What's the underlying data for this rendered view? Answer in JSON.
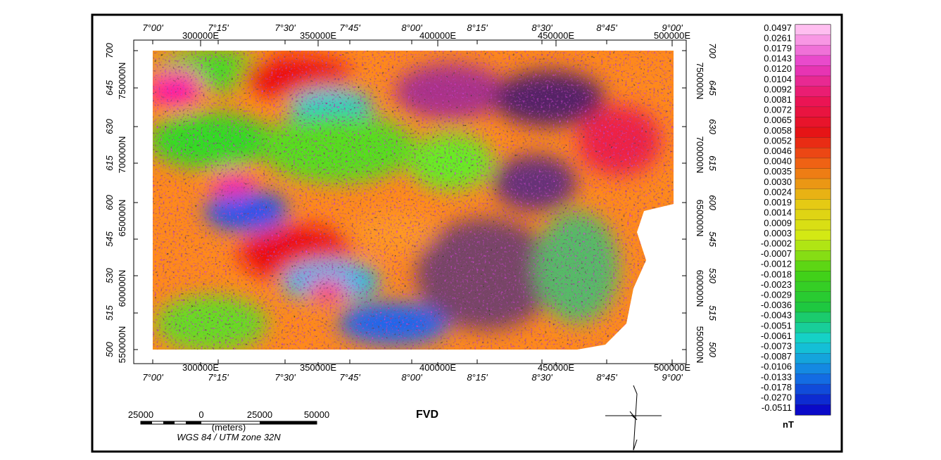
{
  "map": {
    "title": "FVD",
    "top_axis": {
      "degrees": [
        "7°00'",
        "7°15'",
        "7°30'",
        "7°45'",
        "8°00'",
        "8°15'",
        "8°30'",
        "8°45'",
        "9°00'"
      ],
      "utm": [
        "300000E",
        "350000E",
        "400000E",
        "450000E",
        "500000E"
      ]
    },
    "bottom_axis": {
      "degrees": [
        "7°00'",
        "7°15'",
        "7°30'",
        "7°45'",
        "8°00'",
        "8°15'",
        "8°30'",
        "8°45'",
        "9°00'"
      ],
      "utm": [
        "300000E",
        "350000E",
        "400000E",
        "450000E",
        "500000E"
      ]
    },
    "left_axis": {
      "latitude": [
        "700",
        "645",
        "630",
        "615",
        "600",
        "545",
        "530",
        "515",
        "500"
      ],
      "northing": [
        "750000N",
        "700000N",
        "650000N",
        "600000N",
        "550000N"
      ]
    },
    "right_axis": {
      "latitude": [
        "700",
        "645",
        "630",
        "615",
        "600",
        "545",
        "530",
        "515",
        "500"
      ],
      "northing": [
        "750000N",
        "700000N",
        "650000N",
        "600000N",
        "550000N"
      ]
    }
  },
  "legend": {
    "labels": [
      "0.0497",
      "0.0261",
      "0.0179",
      "0.0143",
      "0.0120",
      "0.0104",
      "0.0092",
      "0.0081",
      "0.0072",
      "0.0065",
      "0.0058",
      "0.0052",
      "0.0046",
      "0.0040",
      "0.0035",
      "0.0030",
      "0.0024",
      "0.0019",
      "0.0014",
      "0.0009",
      "0.0003",
      "-0.0002",
      "-0.0007",
      "-0.0012",
      "-0.0018",
      "-0.0023",
      "-0.0029",
      "-0.0036",
      "-0.0043",
      "-0.0051",
      "-0.0061",
      "-0.0073",
      "-0.0087",
      "-0.0106",
      "-0.0133",
      "-0.0178",
      "-0.0270",
      "-0.0511"
    ],
    "unit": "nT"
  },
  "scale_bar": {
    "labels": [
      "25000",
      "0",
      "25000",
      "50000"
    ],
    "unit": "(meters)",
    "projection": "WGS 84 / UTM zone 32N"
  }
}
